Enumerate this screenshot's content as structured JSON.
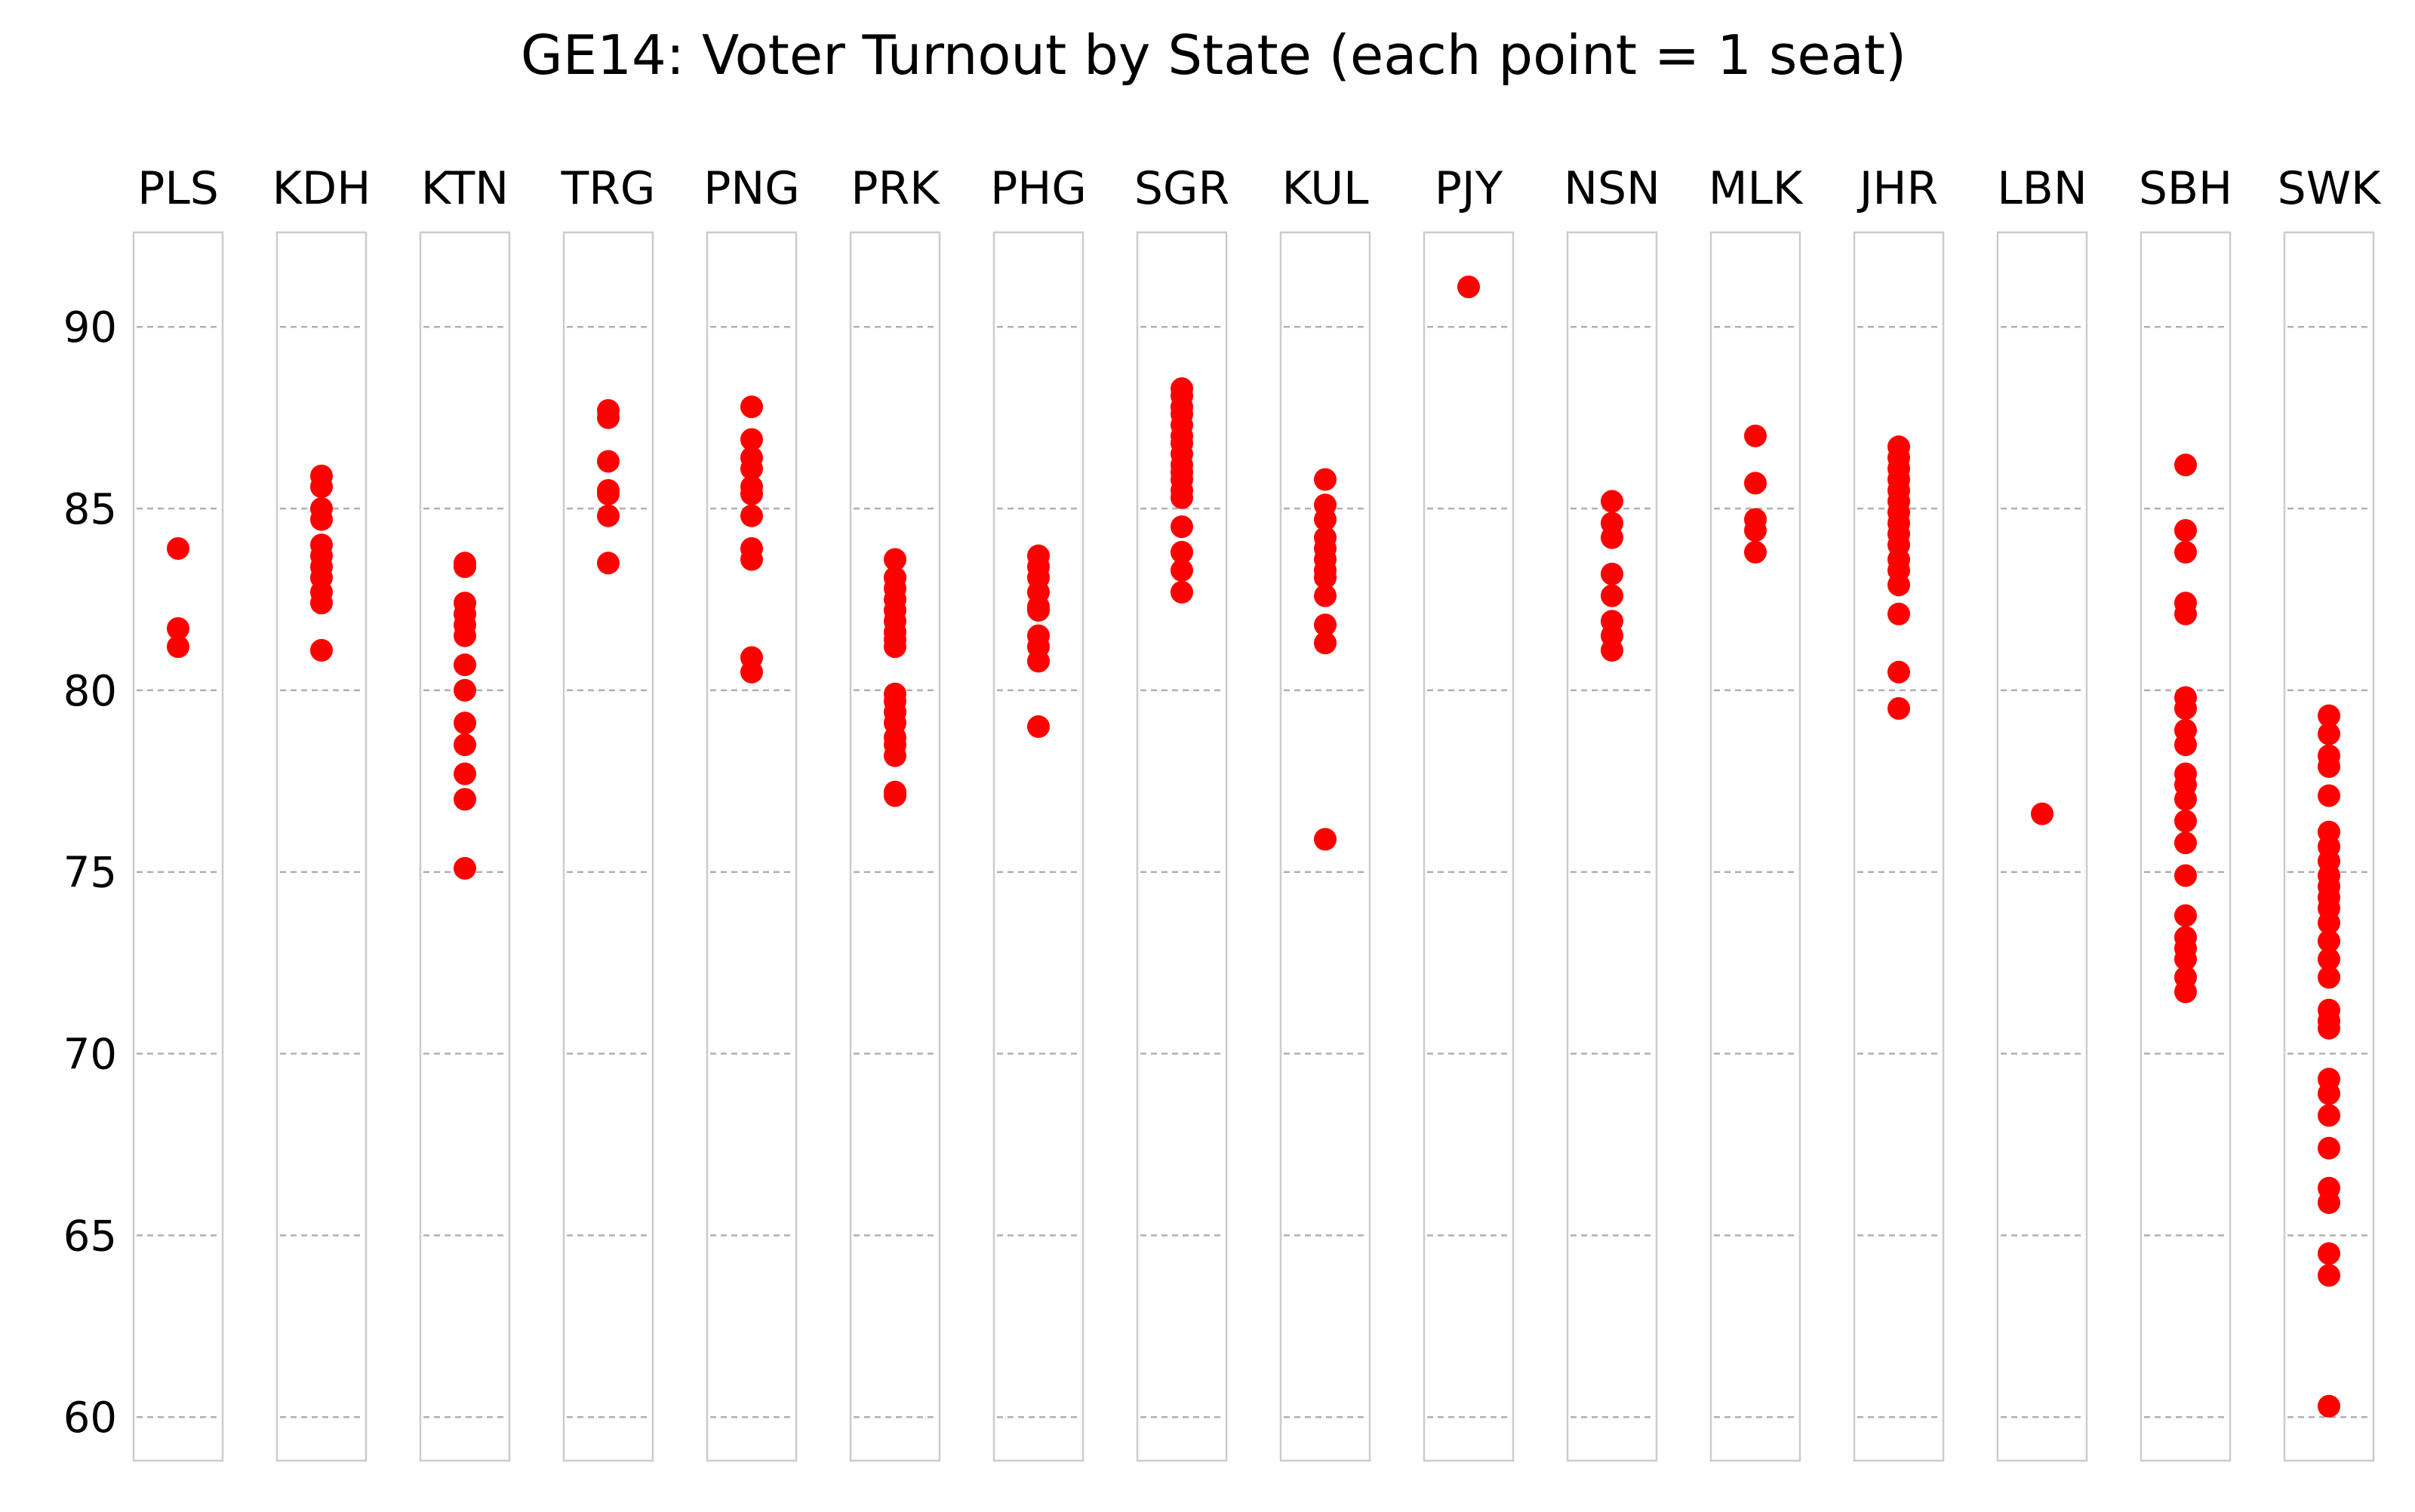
{
  "chart_data": {
    "type": "scatter",
    "title": "GE14: Voter Turnout by State (each point = 1 seat)",
    "xlabel": "",
    "ylabel": "",
    "ylim": [
      58.8,
      92.6
    ],
    "yticks": [
      60,
      65,
      70,
      75,
      80,
      85,
      90
    ],
    "grid": "horizontal dashed",
    "marker_color": "#ff0000",
    "panels": [
      {
        "state": "PLS",
        "values": [
          83.9,
          81.7,
          81.2
        ]
      },
      {
        "state": "KDH",
        "values": [
          85.9,
          85.6,
          85.0,
          84.7,
          84.0,
          83.7,
          83.4,
          83.1,
          82.7,
          82.4,
          81.1
        ]
      },
      {
        "state": "KTN",
        "values": [
          83.5,
          83.4,
          82.4,
          82.1,
          81.8,
          81.5,
          80.7,
          80.0,
          79.1,
          78.5,
          77.7,
          77.0,
          75.1
        ]
      },
      {
        "state": "TRG",
        "values": [
          87.7,
          87.5,
          86.3,
          85.5,
          85.4,
          84.8,
          83.5
        ]
      },
      {
        "state": "PNG",
        "values": [
          87.8,
          86.9,
          86.4,
          86.1,
          85.6,
          85.4,
          84.8,
          83.9,
          83.6,
          80.9,
          80.5
        ]
      },
      {
        "state": "PRK",
        "values": [
          83.6,
          83.1,
          82.8,
          82.5,
          82.2,
          81.9,
          81.6,
          81.4,
          81.2,
          79.9,
          79.7,
          79.4,
          79.1,
          78.7,
          78.5,
          78.2,
          77.2,
          77.1
        ]
      },
      {
        "state": "PHG",
        "values": [
          83.7,
          83.4,
          83.1,
          82.7,
          82.3,
          82.2,
          81.5,
          81.2,
          80.8,
          79.0
        ]
      },
      {
        "state": "SGR",
        "values": [
          88.3,
          88.1,
          87.8,
          87.6,
          87.3,
          87.0,
          86.8,
          86.5,
          86.2,
          86.0,
          85.8,
          85.5,
          85.3,
          84.5,
          83.8,
          83.3,
          82.7
        ]
      },
      {
        "state": "KUL",
        "values": [
          85.8,
          85.1,
          84.7,
          84.2,
          83.9,
          83.6,
          83.3,
          83.1,
          82.6,
          81.8,
          81.3,
          75.9
        ]
      },
      {
        "state": "PJY",
        "values": [
          91.1
        ]
      },
      {
        "state": "NSN",
        "values": [
          85.2,
          84.6,
          84.2,
          83.2,
          82.6,
          81.9,
          81.5,
          81.1
        ]
      },
      {
        "state": "MLK",
        "values": [
          87.0,
          85.7,
          84.7,
          84.4,
          83.8
        ]
      },
      {
        "state": "JHR",
        "values": [
          86.7,
          86.4,
          86.1,
          85.8,
          85.5,
          85.2,
          84.9,
          84.6,
          84.3,
          84.0,
          83.6,
          83.3,
          82.9,
          82.1,
          80.5,
          79.5
        ]
      },
      {
        "state": "LBN",
        "values": [
          76.6
        ]
      },
      {
        "state": "SBH",
        "values": [
          86.2,
          84.4,
          83.8,
          82.4,
          82.1,
          79.8,
          79.5,
          78.9,
          78.5,
          77.7,
          77.4,
          77.0,
          76.4,
          75.8,
          74.9,
          73.8,
          73.2,
          72.9,
          72.6,
          72.1,
          71.7
        ]
      },
      {
        "state": "SWK",
        "values": [
          79.3,
          78.8,
          78.2,
          77.9,
          77.1,
          76.1,
          75.7,
          75.3,
          74.9,
          74.6,
          74.3,
          74.0,
          73.6,
          73.1,
          72.6,
          72.1,
          71.2,
          70.9,
          70.7,
          69.3,
          68.9,
          68.3,
          67.4,
          66.3,
          65.9,
          64.5,
          63.9,
          60.3
        ]
      }
    ]
  }
}
